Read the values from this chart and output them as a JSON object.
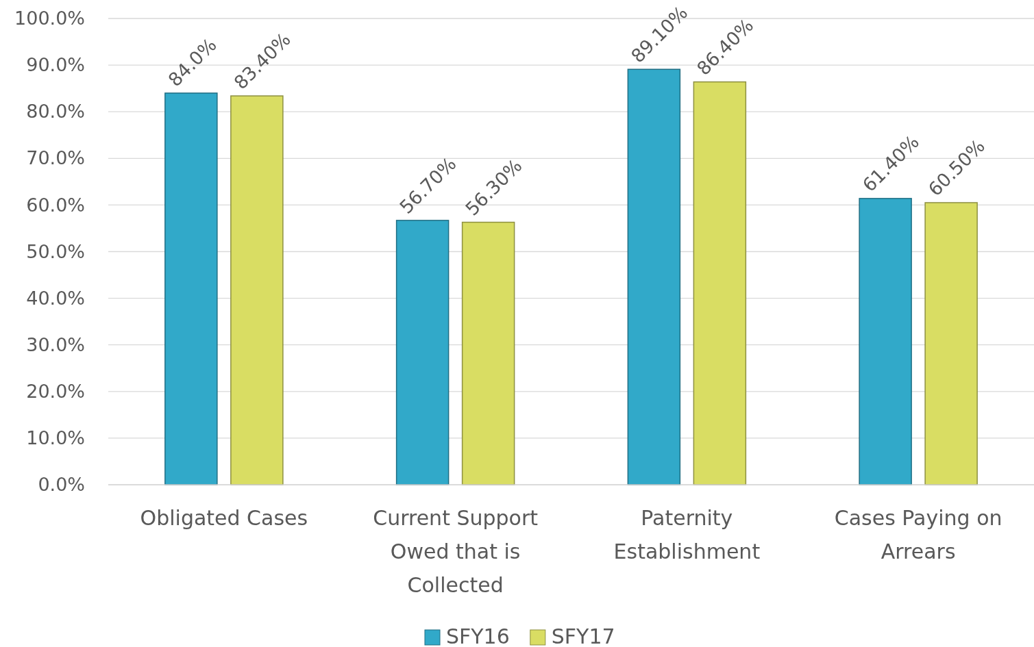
{
  "chart_data": {
    "type": "bar",
    "categories": [
      "Obligated Cases",
      "Current Support Owed that is Collected",
      "Paternity Establishment",
      "Cases Paying on Arrears"
    ],
    "series": [
      {
        "name": "SFY16",
        "color": "#31a9c9",
        "values": [
          84.0,
          56.7,
          89.1,
          61.4
        ],
        "value_labels": [
          "84.0%",
          "56.70%",
          "89.10%",
          "61.40%"
        ]
      },
      {
        "name": "SFY17",
        "color": "#d9dd63",
        "values": [
          83.4,
          56.3,
          86.4,
          60.5
        ],
        "value_labels": [
          "83.40%",
          "56.30%",
          "86.40%",
          "60.50%"
        ]
      }
    ],
    "ylim": [
      0,
      100
    ],
    "yticks": [
      {
        "value": 0,
        "label": "0.0%"
      },
      {
        "value": 10,
        "label": "10.0%"
      },
      {
        "value": 20,
        "label": "20.0%"
      },
      {
        "value": 30,
        "label": "30.0%"
      },
      {
        "value": 40,
        "label": "40.0%"
      },
      {
        "value": 50,
        "label": "50.0%"
      },
      {
        "value": 60,
        "label": "60.0%"
      },
      {
        "value": 70,
        "label": "70.0%"
      },
      {
        "value": 80,
        "label": "80.0%"
      },
      {
        "value": 90,
        "label": "90.0%"
      },
      {
        "value": 100,
        "label": "100.0%"
      }
    ],
    "grid": "y",
    "legend": "bottom"
  }
}
